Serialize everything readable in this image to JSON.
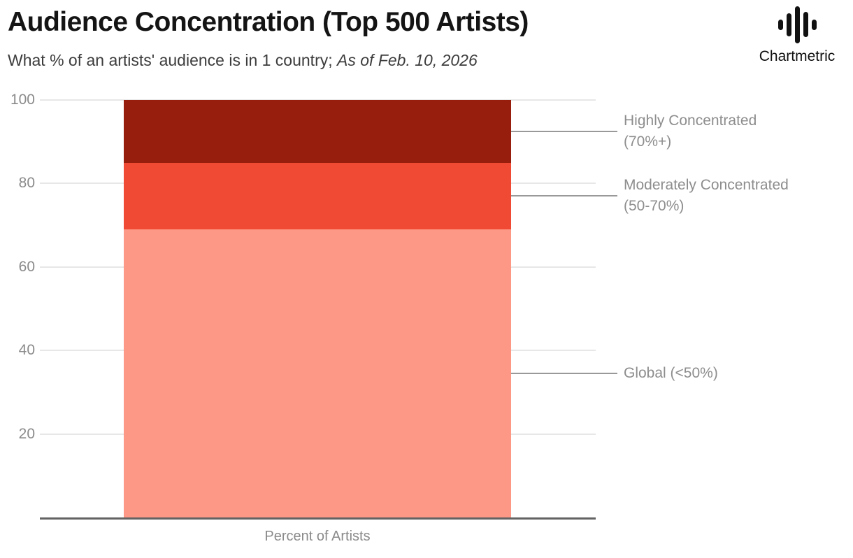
{
  "logo": {
    "text": "Chartmetric",
    "icon": "waveform-icon",
    "color": "#111111"
  },
  "chart_data": {
    "type": "bar",
    "stacked": true,
    "title": "Audience Concentration (Top 500 Artists)",
    "subtitle_plain": "What % of an artists' audience is in 1 country; ",
    "subtitle_italic": "As of Feb. 10, 2026",
    "xlabel": "Percent of Artists",
    "ylabel": "",
    "ylim": [
      0,
      100
    ],
    "yticks": [
      20,
      40,
      60,
      80,
      100
    ],
    "grid": true,
    "legend_position": "right-annotations",
    "categories": [
      "Percent of Artists"
    ],
    "segments_bottom_to_top": [
      {
        "name": "Global (<50%)",
        "annotation_lines": [
          "Global (<50%)"
        ],
        "value": 69,
        "color": "#FD9786"
      },
      {
        "name": "Moderately Concentrated (50-70%)",
        "annotation_lines": [
          "Moderately Concentrated",
          "(50-70%)"
        ],
        "value": 16,
        "color": "#F04A34"
      },
      {
        "name": "Highly Concentrated (70%+)",
        "annotation_lines": [
          "Highly Concentrated",
          "(70%+)"
        ],
        "value": 15,
        "color": "#971D0D"
      }
    ],
    "colors": {
      "annotation_text": "#8d8d8d",
      "callout_line": "#999999",
      "axis_line": "#636363",
      "gridline": "#e7e7e7",
      "tick_label": "#8a8a8a"
    }
  }
}
